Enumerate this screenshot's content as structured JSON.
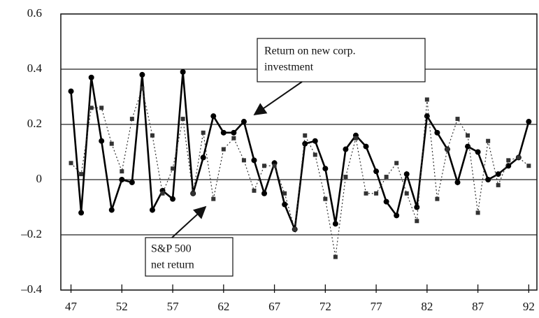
{
  "chart_data": {
    "type": "line",
    "x": [
      47,
      48,
      49,
      50,
      51,
      52,
      53,
      54,
      55,
      56,
      57,
      58,
      59,
      60,
      61,
      62,
      63,
      64,
      65,
      66,
      67,
      68,
      69,
      70,
      71,
      72,
      73,
      74,
      75,
      76,
      77,
      78,
      79,
      80,
      81,
      82,
      83,
      84,
      85,
      86,
      87,
      88,
      89,
      90,
      91,
      92
    ],
    "series": [
      {
        "label": [
          "Return on new corp.",
          "investment"
        ],
        "color": "#000000",
        "style": "solid",
        "marker": "circle",
        "values": [
          0.32,
          -0.12,
          0.37,
          0.14,
          -0.11,
          0.0,
          -0.01,
          0.38,
          -0.11,
          -0.04,
          -0.07,
          0.39,
          -0.05,
          0.08,
          0.23,
          0.17,
          0.17,
          0.21,
          0.07,
          -0.05,
          0.06,
          -0.09,
          -0.18,
          0.13,
          0.14,
          0.04,
          -0.16,
          0.11,
          0.16,
          0.12,
          0.03,
          -0.08,
          -0.13,
          0.02,
          -0.1,
          0.23,
          0.17,
          0.11,
          -0.01,
          0.12,
          0.1,
          0.0,
          0.02,
          0.05,
          0.08,
          0.21
        ]
      },
      {
        "label": [
          "S&P 500",
          "net return"
        ],
        "color": "#333333",
        "style": "dotted",
        "marker": "square",
        "values": [
          0.06,
          0.02,
          0.26,
          0.26,
          0.13,
          0.03,
          0.22,
          0.33,
          0.16,
          -0.05,
          0.04,
          0.22,
          -0.05,
          0.17,
          -0.07,
          0.11,
          0.15,
          0.07,
          -0.04,
          0.05,
          0.05,
          -0.05,
          -0.18,
          0.16,
          0.09,
          -0.07,
          -0.28,
          0.01,
          0.15,
          -0.05,
          -0.05,
          0.01,
          0.06,
          -0.05,
          -0.15,
          0.29,
          -0.07,
          0.11,
          0.22,
          0.16,
          -0.12,
          0.14,
          -0.02,
          0.07,
          0.08,
          0.05
        ]
      }
    ],
    "xlim": [
      46,
      92.8
    ],
    "xticks": [
      47,
      52,
      57,
      62,
      67,
      72,
      77,
      82,
      87,
      92
    ],
    "ylim": [
      -0.4,
      0.6
    ],
    "yticks": [
      {
        "value": -0.4,
        "label": "–0.4"
      },
      {
        "value": -0.2,
        "label": "–0.2"
      },
      0,
      0.2,
      0.4,
      0.6
    ],
    "grid": true
  }
}
